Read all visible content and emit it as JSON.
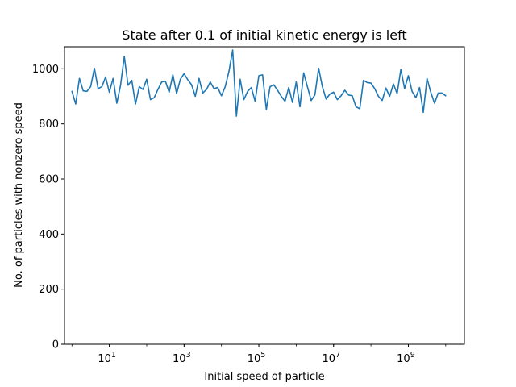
{
  "chart_data": {
    "type": "line",
    "title": "State after 0.1 of initial kinetic energy is left",
    "xlabel": "Initial speed of particle",
    "ylabel": "No. of particles with nonzero speed",
    "xscale": "log",
    "xlim_log10": [
      -0.2,
      10.5
    ],
    "ylim": [
      0,
      1080
    ],
    "x_ticks": [
      {
        "base": "10",
        "exp": "1",
        "value_log10": 1
      },
      {
        "base": "10",
        "exp": "3",
        "value_log10": 3
      },
      {
        "base": "10",
        "exp": "5",
        "value_log10": 5
      },
      {
        "base": "10",
        "exp": "7",
        "value_log10": 7
      },
      {
        "base": "10",
        "exp": "9",
        "value_log10": 9
      }
    ],
    "y_ticks": [
      {
        "label": "0",
        "value": 0
      },
      {
        "label": "200",
        "value": 200
      },
      {
        "label": "400",
        "value": 400
      },
      {
        "label": "600",
        "value": 600
      },
      {
        "label": "800",
        "value": 800
      },
      {
        "label": "1000",
        "value": 1000
      }
    ],
    "color": "#1f77b4",
    "series": [
      {
        "name": "nonzero",
        "x_log10_start": 0,
        "x_log10_end": 10,
        "values": [
          918,
          872,
          965,
          920,
          918,
          935,
          1002,
          928,
          935,
          970,
          915,
          965,
          875,
          940,
          1045,
          940,
          958,
          872,
          935,
          925,
          962,
          888,
          895,
          925,
          952,
          955,
          915,
          978,
          910,
          962,
          982,
          960,
          942,
          900,
          965,
          912,
          925,
          952,
          928,
          932,
          902,
          935,
          990,
          1068,
          828,
          962,
          888,
          918,
          932,
          882,
          975,
          978,
          852,
          935,
          942,
          922,
          900,
          882,
          932,
          878,
          952,
          862,
          985,
          935,
          885,
          905,
          1002,
          935,
          890,
          908,
          915,
          888,
          902,
          922,
          905,
          902,
          862,
          855,
          958,
          950,
          948,
          928,
          900,
          885,
          930,
          900,
          945,
          910,
          998,
          928,
          975,
          918,
          895,
          932,
          842,
          965,
          915,
          875,
          912,
          912,
          902
        ]
      }
    ]
  }
}
